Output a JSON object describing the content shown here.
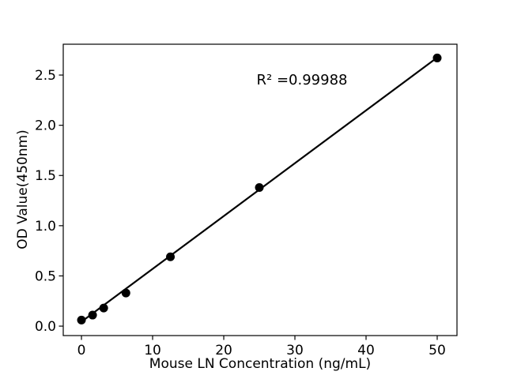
{
  "chart_data": {
    "type": "scatter",
    "title": "",
    "xlabel": "Mouse LN Concentration (ng/mL)",
    "ylabel": "OD Value(450nm)",
    "annotation": "R² =0.99988",
    "x": [
      0,
      1.5625,
      3.125,
      6.25,
      12.5,
      25,
      50
    ],
    "y": [
      0.06,
      0.11,
      0.18,
      0.33,
      0.69,
      1.38,
      2.67
    ],
    "fit_line": {
      "x1": 0,
      "y1": 0.044,
      "x2": 50,
      "y2": 2.674
    },
    "xticks": [
      0,
      10,
      20,
      30,
      40,
      50
    ],
    "xtick_labels": [
      "0",
      "10",
      "20",
      "30",
      "40",
      "50"
    ],
    "yticks": [
      0.0,
      0.5,
      1.0,
      1.5,
      2.0,
      2.5
    ],
    "ytick_labels": [
      "0.0",
      "0.5",
      "1.0",
      "1.5",
      "2.0",
      "2.5"
    ],
    "xlim": [
      -2.56,
      52.78
    ],
    "ylim": [
      -0.094,
      2.807
    ],
    "grid": false,
    "legend": "none",
    "colors": {
      "marker": "#000000",
      "line": "#000000",
      "spine": "#000000",
      "background": "#ffffff",
      "text": "#000000"
    }
  }
}
